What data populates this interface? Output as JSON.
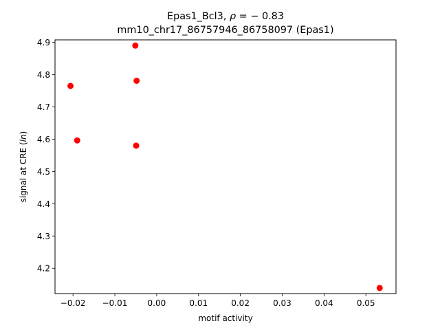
{
  "chart_data": {
    "type": "scatter",
    "title_line1_prefix": "Epas1_Bcl3, ",
    "title_line1_rho": "ρ",
    "title_line1_suffix": " = − 0.83",
    "title_line2": "mm10_chr17_86757946_86758097 (Epas1)",
    "xlabel": "motif activity",
    "ylabel_prefix": "signal at CRE (",
    "ylabel_italic": "ln",
    "ylabel_suffix": ")",
    "xlim": [
      -0.0243,
      0.0572
    ],
    "ylim": [
      4.1217,
      4.9076
    ],
    "xticks": [
      -0.02,
      -0.01,
      0.0,
      0.01,
      0.02,
      0.03,
      0.04,
      0.05
    ],
    "xtick_labels": [
      "−0.02",
      "−0.01",
      "0.00",
      "0.01",
      "0.02",
      "0.03",
      "0.04",
      "0.05"
    ],
    "yticks": [
      4.2,
      4.3,
      4.4,
      4.5,
      4.6,
      4.7,
      4.8,
      4.9
    ],
    "ytick_labels": [
      "4.2",
      "4.3",
      "4.4",
      "4.5",
      "4.6",
      "4.7",
      "4.8",
      "4.9"
    ],
    "grid": false,
    "marker_color": "#ff0000",
    "points": [
      {
        "x": -0.0206,
        "y": 4.765
      },
      {
        "x": -0.019,
        "y": 4.596
      },
      {
        "x": -0.0051,
        "y": 4.89
      },
      {
        "x": -0.0048,
        "y": 4.781
      },
      {
        "x": -0.0049,
        "y": 4.58
      },
      {
        "x": 0.0533,
        "y": 4.139
      }
    ]
  }
}
